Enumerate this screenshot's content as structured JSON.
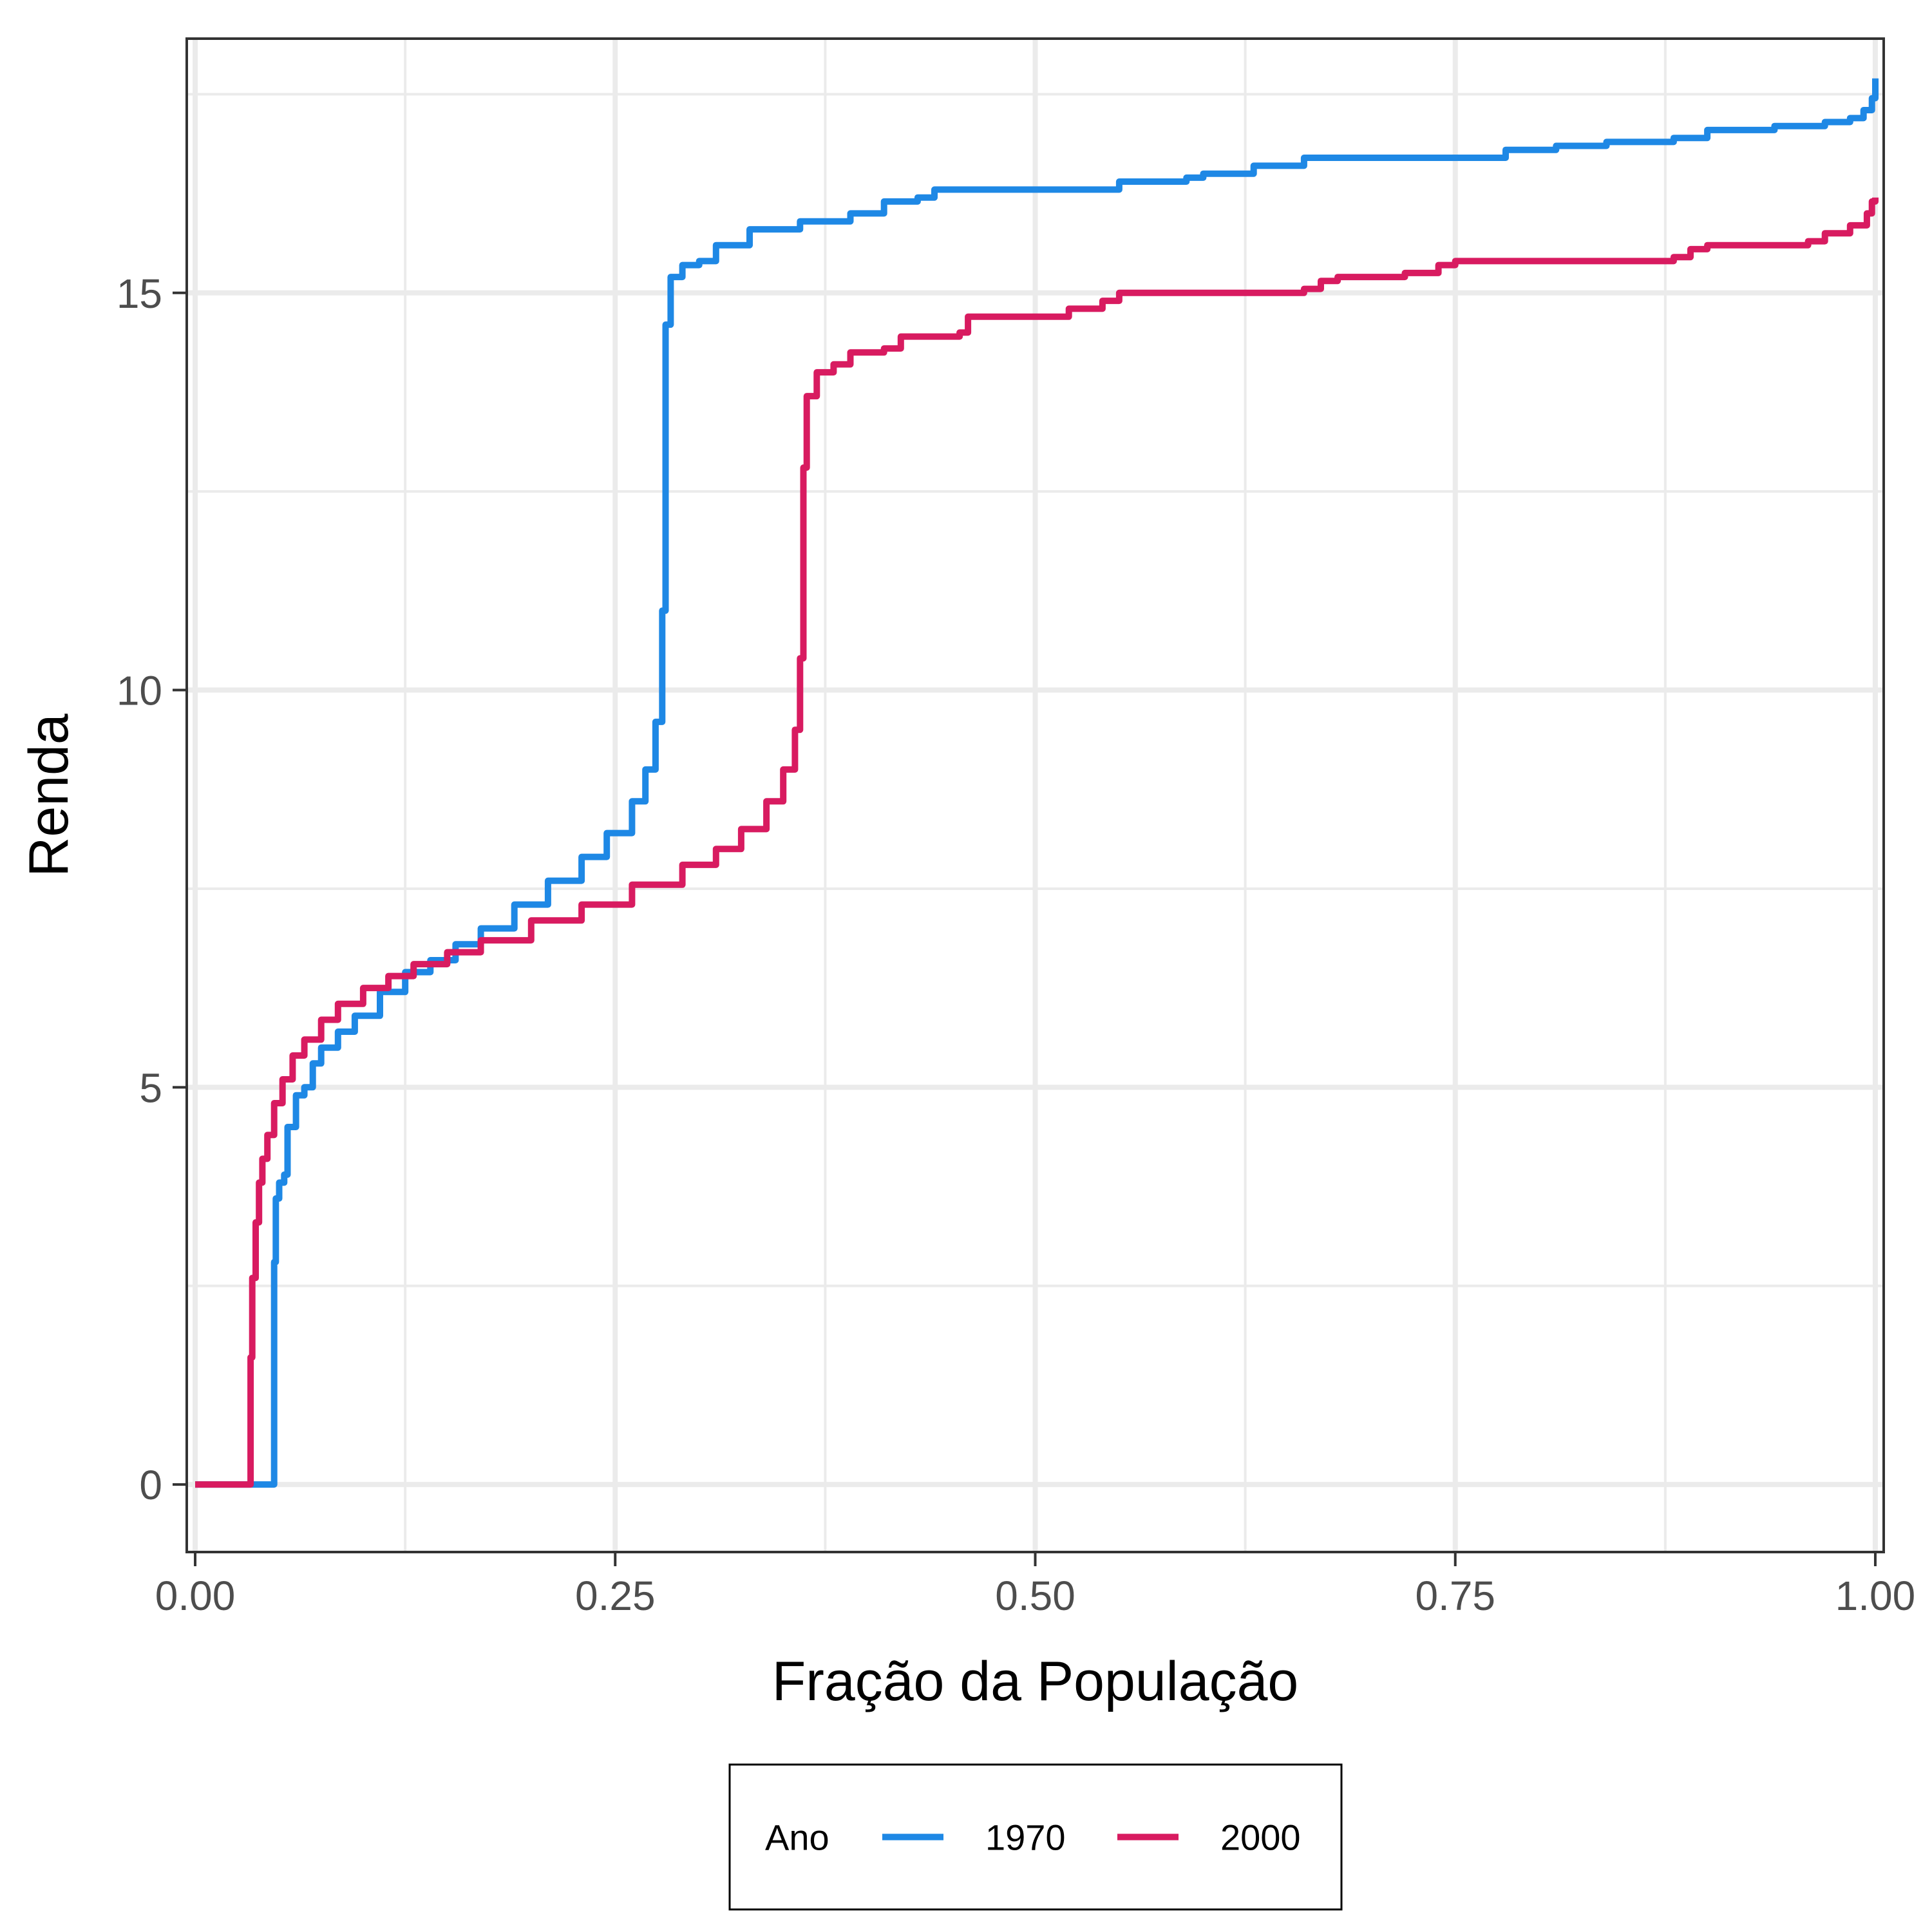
{
  "chart_data": {
    "type": "line",
    "title": "",
    "xlabel": "Fração da População",
    "ylabel": "Renda",
    "xlim": [
      -0.005,
      1.005
    ],
    "ylim": [
      -0.85,
      18.2
    ],
    "x_ticks": [
      0.0,
      0.25,
      0.5,
      0.75,
      1.0
    ],
    "x_tick_labels": [
      "0.00",
      "0.25",
      "0.50",
      "0.75",
      "1.00"
    ],
    "y_ticks": [
      0,
      5,
      10,
      15
    ],
    "y_tick_labels": [
      "0",
      "5",
      "10",
      "15"
    ],
    "y_minor_ticks": [
      2.5,
      7.5,
      12.5,
      17.5
    ],
    "x_minor_ticks": [
      0.125,
      0.375,
      0.625,
      0.875
    ],
    "grid": true,
    "legend": {
      "title": "Ano",
      "position": "bottom",
      "entries": [
        "1970",
        "2000"
      ]
    },
    "series": [
      {
        "name": "1970",
        "color": "#1E88E5",
        "points": [
          [
            0.0,
            0
          ],
          [
            0.046,
            0
          ],
          [
            0.047,
            2.8
          ],
          [
            0.048,
            3.6
          ],
          [
            0.05,
            3.8
          ],
          [
            0.053,
            3.9
          ],
          [
            0.055,
            4.5
          ],
          [
            0.06,
            4.9
          ],
          [
            0.065,
            5.0
          ],
          [
            0.07,
            5.3
          ],
          [
            0.075,
            5.5
          ],
          [
            0.085,
            5.7
          ],
          [
            0.095,
            5.9
          ],
          [
            0.11,
            6.2
          ],
          [
            0.125,
            6.45
          ],
          [
            0.14,
            6.6
          ],
          [
            0.155,
            6.8
          ],
          [
            0.17,
            7.0
          ],
          [
            0.19,
            7.3
          ],
          [
            0.21,
            7.6
          ],
          [
            0.23,
            7.9
          ],
          [
            0.245,
            8.2
          ],
          [
            0.26,
            8.6
          ],
          [
            0.268,
            9.0
          ],
          [
            0.274,
            9.6
          ],
          [
            0.278,
            11.0
          ],
          [
            0.28,
            14.6
          ],
          [
            0.283,
            15.2
          ],
          [
            0.29,
            15.35
          ],
          [
            0.3,
            15.4
          ],
          [
            0.31,
            15.6
          ],
          [
            0.33,
            15.8
          ],
          [
            0.36,
            15.9
          ],
          [
            0.39,
            16.0
          ],
          [
            0.41,
            16.15
          ],
          [
            0.43,
            16.2
          ],
          [
            0.44,
            16.3
          ],
          [
            0.53,
            16.3
          ],
          [
            0.55,
            16.4
          ],
          [
            0.59,
            16.45
          ],
          [
            0.6,
            16.5
          ],
          [
            0.63,
            16.6
          ],
          [
            0.66,
            16.7
          ],
          [
            0.77,
            16.7
          ],
          [
            0.78,
            16.8
          ],
          [
            0.81,
            16.85
          ],
          [
            0.84,
            16.9
          ],
          [
            0.88,
            16.95
          ],
          [
            0.9,
            17.05
          ],
          [
            0.94,
            17.1
          ],
          [
            0.97,
            17.15
          ],
          [
            0.985,
            17.2
          ],
          [
            0.993,
            17.3
          ],
          [
            0.998,
            17.45
          ],
          [
            1.0,
            17.7
          ]
        ]
      },
      {
        "name": "2000",
        "color": "#D81B60",
        "points": [
          [
            0.0,
            0
          ],
          [
            0.032,
            0
          ],
          [
            0.033,
            1.6
          ],
          [
            0.034,
            2.6
          ],
          [
            0.036,
            3.3
          ],
          [
            0.038,
            3.8
          ],
          [
            0.04,
            4.1
          ],
          [
            0.043,
            4.4
          ],
          [
            0.047,
            4.8
          ],
          [
            0.052,
            5.1
          ],
          [
            0.058,
            5.4
          ],
          [
            0.065,
            5.6
          ],
          [
            0.075,
            5.85
          ],
          [
            0.085,
            6.05
          ],
          [
            0.1,
            6.25
          ],
          [
            0.115,
            6.4
          ],
          [
            0.13,
            6.55
          ],
          [
            0.15,
            6.7
          ],
          [
            0.17,
            6.85
          ],
          [
            0.2,
            7.1
          ],
          [
            0.23,
            7.3
          ],
          [
            0.26,
            7.55
          ],
          [
            0.29,
            7.8
          ],
          [
            0.31,
            8.0
          ],
          [
            0.325,
            8.25
          ],
          [
            0.34,
            8.6
          ],
          [
            0.35,
            9.0
          ],
          [
            0.357,
            9.5
          ],
          [
            0.36,
            10.4
          ],
          [
            0.362,
            12.8
          ],
          [
            0.364,
            13.7
          ],
          [
            0.37,
            14.0
          ],
          [
            0.38,
            14.1
          ],
          [
            0.39,
            14.25
          ],
          [
            0.41,
            14.3
          ],
          [
            0.42,
            14.45
          ],
          [
            0.455,
            14.5
          ],
          [
            0.46,
            14.7
          ],
          [
            0.5,
            14.7
          ],
          [
            0.52,
            14.8
          ],
          [
            0.54,
            14.9
          ],
          [
            0.55,
            15.0
          ],
          [
            0.66,
            15.05
          ],
          [
            0.67,
            15.15
          ],
          [
            0.68,
            15.2
          ],
          [
            0.72,
            15.25
          ],
          [
            0.74,
            15.35
          ],
          [
            0.75,
            15.4
          ],
          [
            0.88,
            15.45
          ],
          [
            0.89,
            15.55
          ],
          [
            0.9,
            15.6
          ],
          [
            0.96,
            15.65
          ],
          [
            0.97,
            15.75
          ],
          [
            0.985,
            15.85
          ],
          [
            0.995,
            16.0
          ],
          [
            0.998,
            16.15
          ],
          [
            1.0,
            16.2
          ]
        ]
      }
    ]
  }
}
